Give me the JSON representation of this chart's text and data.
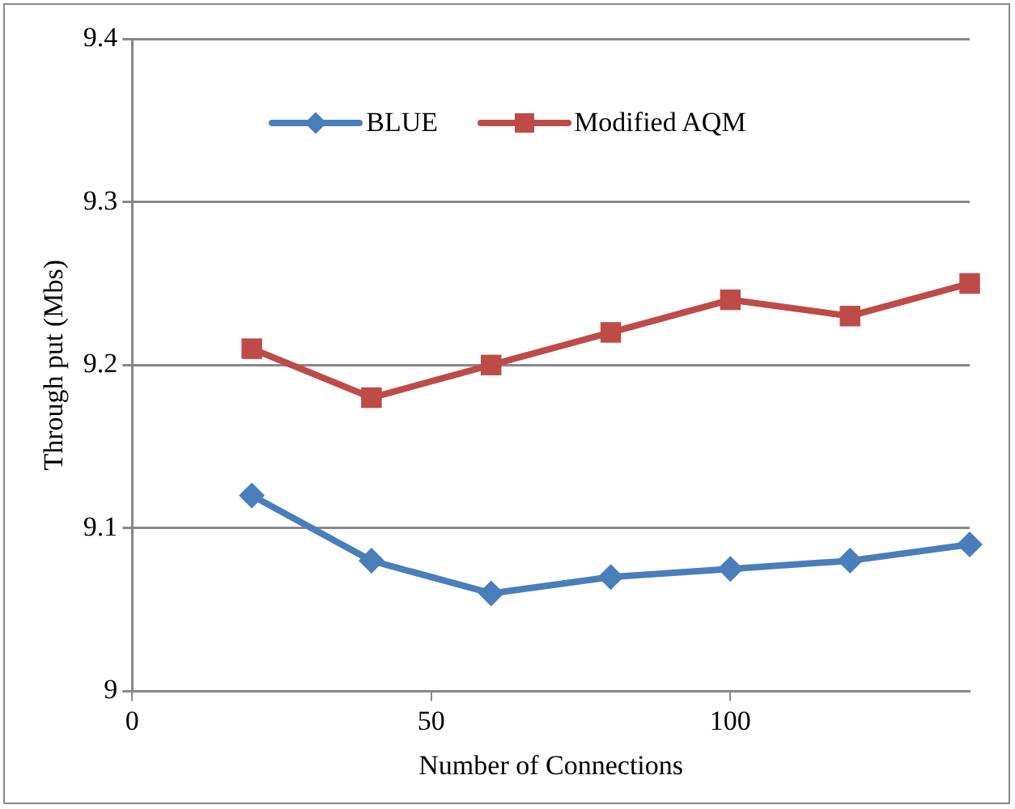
{
  "chart_data": {
    "type": "line",
    "xlabel": "Number of Connections",
    "ylabel": "Through put (Mbs)",
    "x": [
      20,
      40,
      60,
      80,
      100,
      120,
      140
    ],
    "series": [
      {
        "name": "BLUE",
        "color": "#4a7ebb",
        "marker": "diamond",
        "values": [
          9.12,
          9.08,
          9.06,
          9.07,
          9.075,
          9.08,
          9.09
        ]
      },
      {
        "name": "Modified AQM",
        "color": "#be4b48",
        "marker": "square",
        "values": [
          9.21,
          9.18,
          9.2,
          9.22,
          9.24,
          9.23,
          9.25
        ]
      }
    ],
    "xlim": [
      0,
      140
    ],
    "xticks": [
      0,
      50,
      100
    ],
    "ylim": [
      9,
      9.4
    ],
    "yticks": [
      9,
      9.1,
      9.2,
      9.3,
      9.4
    ],
    "grid": "y",
    "legend": "top",
    "line_style": "solid"
  }
}
